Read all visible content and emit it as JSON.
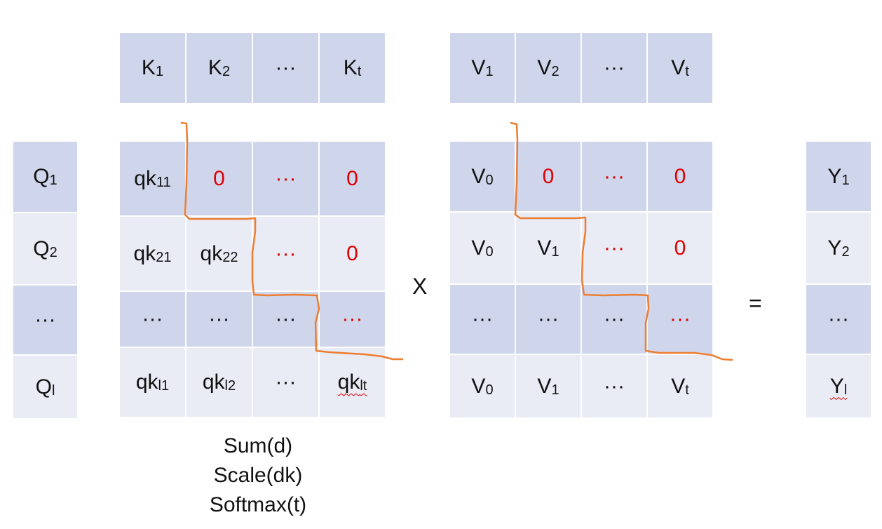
{
  "k_header": [
    {
      "base": "K",
      "sub": "1"
    },
    {
      "base": "K",
      "sub": "2"
    },
    {
      "base": "···",
      "sub": ""
    },
    {
      "base": "K",
      "sub": "t"
    }
  ],
  "v_header": [
    {
      "base": "V",
      "sub": "1"
    },
    {
      "base": "V",
      "sub": "2"
    },
    {
      "base": "···",
      "sub": ""
    },
    {
      "base": "V",
      "sub": "t"
    }
  ],
  "q_column": [
    {
      "base": "Q",
      "sub": "1"
    },
    {
      "base": "Q",
      "sub": "2"
    },
    {
      "base": "···",
      "sub": ""
    },
    {
      "base": "Q",
      "sub": "l"
    }
  ],
  "qk_matrix": [
    [
      {
        "base": "qk",
        "sub": "11"
      },
      {
        "base": "0",
        "sub": "",
        "red": true
      },
      {
        "base": "···",
        "sub": "",
        "red": true
      },
      {
        "base": "0",
        "sub": "",
        "red": true
      }
    ],
    [
      {
        "base": "qk",
        "sub": "21"
      },
      {
        "base": "qk",
        "sub": "22"
      },
      {
        "base": "···",
        "sub": "",
        "red": true
      },
      {
        "base": "0",
        "sub": "",
        "red": true
      }
    ],
    [
      {
        "base": "···",
        "sub": ""
      },
      {
        "base": "···",
        "sub": ""
      },
      {
        "base": "···",
        "sub": ""
      },
      {
        "base": "···",
        "sub": "",
        "red": true
      }
    ],
    [
      {
        "base": "qk",
        "sub": "l1"
      },
      {
        "base": "qk",
        "sub": "l2"
      },
      {
        "base": "···",
        "sub": ""
      },
      {
        "base": "qk",
        "sub": "lt",
        "wavy": true
      }
    ]
  ],
  "v_matrix": [
    [
      {
        "base": "V",
        "sub": "0"
      },
      {
        "base": "0",
        "sub": "",
        "red": true
      },
      {
        "base": "···",
        "sub": "",
        "red": true
      },
      {
        "base": "0",
        "sub": "",
        "red": true
      }
    ],
    [
      {
        "base": "V",
        "sub": "0"
      },
      {
        "base": "V",
        "sub": "1"
      },
      {
        "base": "···",
        "sub": "",
        "red": true
      },
      {
        "base": "0",
        "sub": "",
        "red": true
      }
    ],
    [
      {
        "base": "···",
        "sub": ""
      },
      {
        "base": "···",
        "sub": ""
      },
      {
        "base": "···",
        "sub": ""
      },
      {
        "base": "···",
        "sub": "",
        "red": true
      }
    ],
    [
      {
        "base": "V",
        "sub": "0"
      },
      {
        "base": "V",
        "sub": "1"
      },
      {
        "base": "···",
        "sub": ""
      },
      {
        "base": "V",
        "sub": "t"
      }
    ]
  ],
  "y_column": [
    {
      "base": "Y",
      "sub": "1"
    },
    {
      "base": "Y",
      "sub": "2"
    },
    {
      "base": "···",
      "sub": ""
    },
    {
      "base": "Y",
      "sub": "l",
      "wavy": true
    }
  ],
  "operators": {
    "multiply": "X",
    "equals": "="
  },
  "qk_operations": [
    "Sum(d)",
    "Scale(dk)",
    "Softmax(t)"
  ],
  "colors": {
    "cell_dark": "#cfd5ea",
    "cell_light": "#e9ebf5",
    "mask_line": "#ed7d31",
    "masked_text": "#e00000"
  }
}
